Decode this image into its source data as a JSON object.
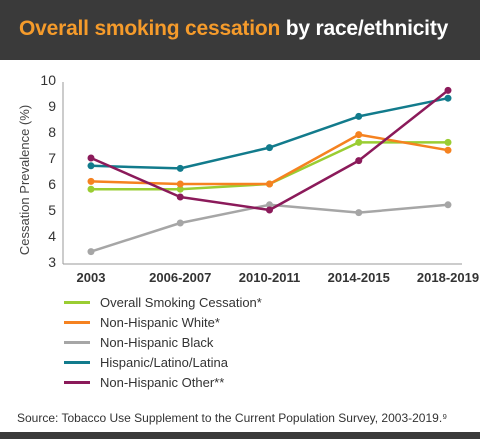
{
  "header": {
    "title_accent": "Overall smoking cessation",
    "title_rest": " by race/ethnicity"
  },
  "chart_data": {
    "type": "line",
    "categories": [
      "2003",
      "2006-2007",
      "2010-2011",
      "2014-2015",
      "2018-2019"
    ],
    "ylabel": "Cessation Prevalence (%)",
    "ylim": [
      3,
      10
    ],
    "yticks": [
      3,
      4,
      5,
      6,
      7,
      8,
      9,
      10
    ],
    "grid": false,
    "legend_position": "bottom",
    "series": [
      {
        "name": "Overall Smoking Cessation*",
        "color": "#9acd32",
        "values": [
          5.8,
          5.8,
          6.0,
          7.6,
          7.6
        ]
      },
      {
        "name": "Non-Hispanic White*",
        "color": "#f58220",
        "values": [
          6.1,
          6.0,
          6.0,
          7.9,
          7.3
        ]
      },
      {
        "name": "Non-Hispanic Black",
        "color": "#a6a6a6",
        "values": [
          3.4,
          4.5,
          5.2,
          4.9,
          5.2
        ]
      },
      {
        "name": "Hispanic/Latino/Latina",
        "color": "#127b8c",
        "values": [
          6.7,
          6.6,
          7.4,
          8.6,
          9.3
        ]
      },
      {
        "name": "Non-Hispanic Other**",
        "color": "#8b1a5a",
        "values": [
          7.0,
          5.5,
          5.0,
          6.9,
          9.6
        ]
      }
    ]
  },
  "source": "Source: Tobacco Use Supplement to the Current Population Survey, 2003-2019.⁹"
}
